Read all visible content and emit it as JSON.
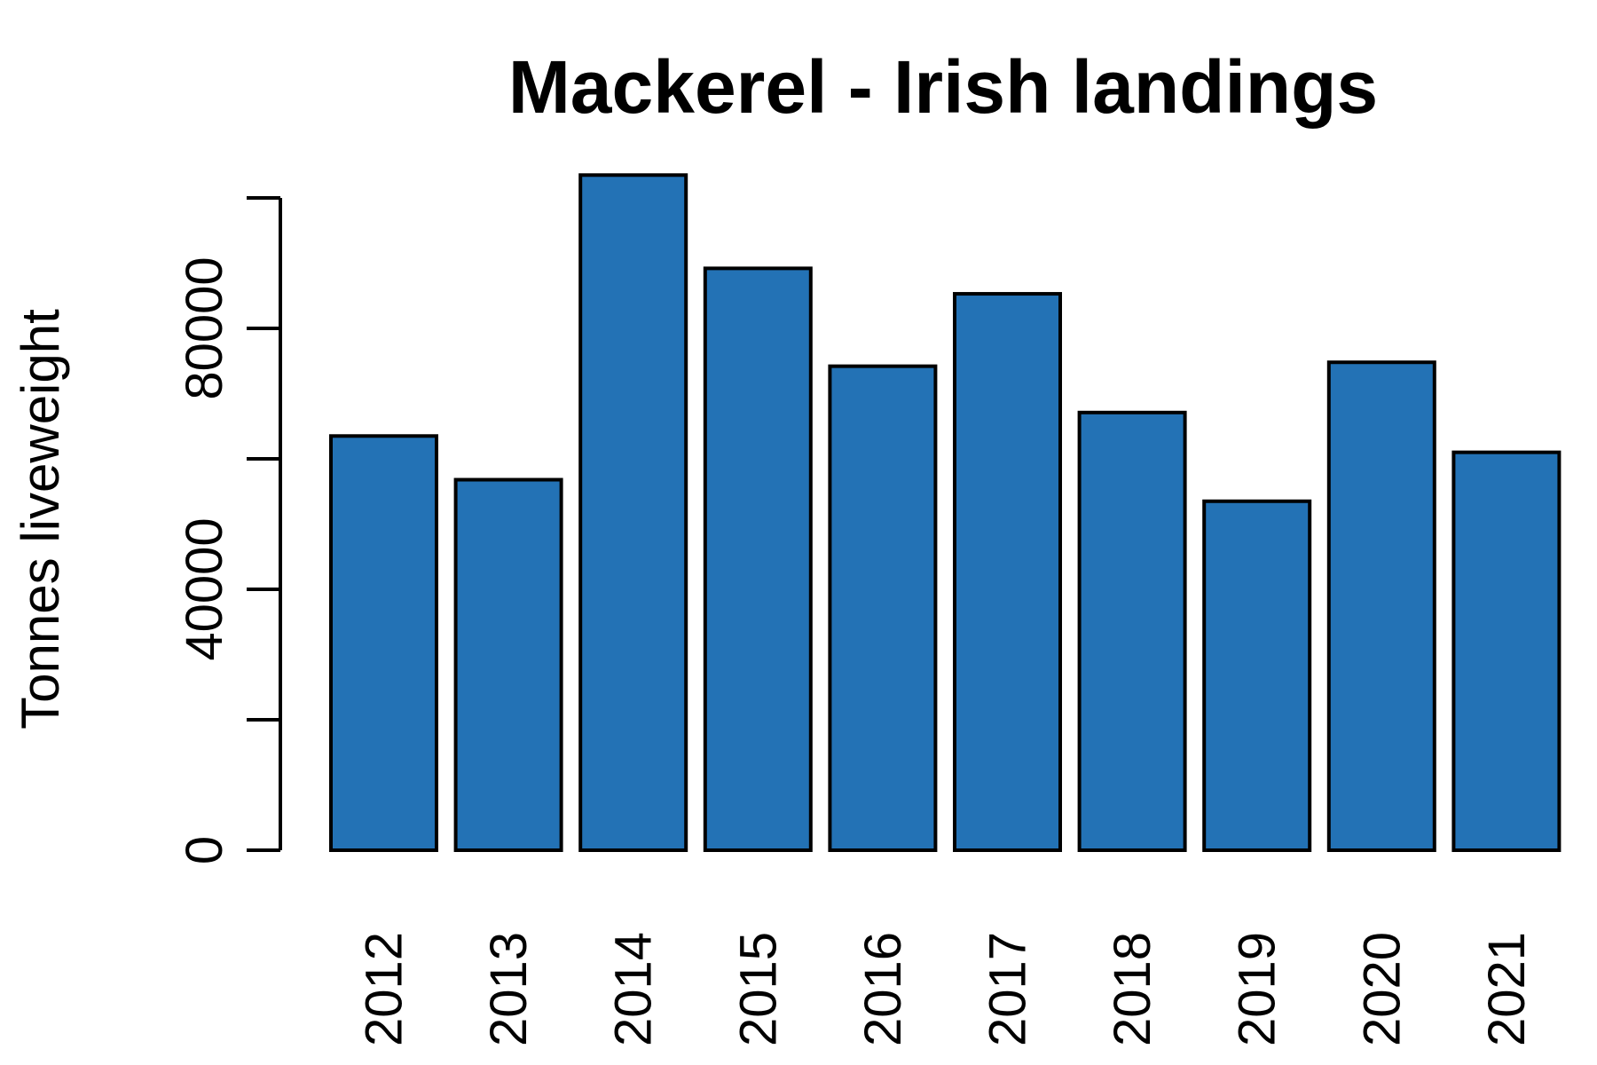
{
  "chart_data": {
    "type": "bar",
    "title": "Mackerel - Irish landings",
    "xlabel": "",
    "ylabel": "Tonnes liveweight",
    "categories": [
      "2012",
      "2013",
      "2014",
      "2015",
      "2016",
      "2017",
      "2018",
      "2019",
      "2020",
      "2021"
    ],
    "values": [
      63500,
      56800,
      103500,
      89200,
      74200,
      85300,
      67100,
      53500,
      74800,
      61000
    ],
    "ylim": [
      0,
      100000
    ],
    "yticks": [
      0,
      20000,
      40000,
      60000,
      80000,
      100000
    ],
    "ytick_labels": [
      "0",
      "",
      "40000",
      "",
      "80000",
      ""
    ],
    "bar_color": "#2372b5",
    "grid": false,
    "legend": "none"
  }
}
